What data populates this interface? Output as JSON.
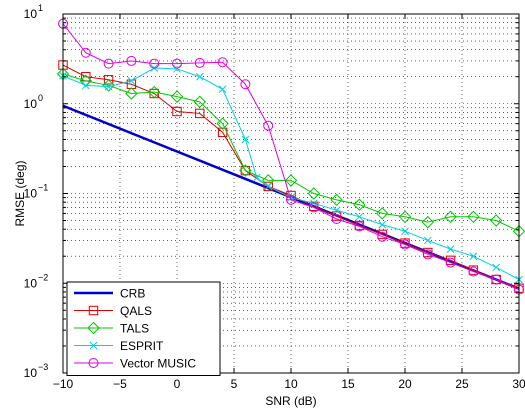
{
  "chart_data": {
    "type": "line",
    "title": "",
    "xlabel": "SNR (dB)",
    "ylabel": "RMSE (deg)",
    "xscale": "linear",
    "yscale": "log",
    "xlim": [
      -10,
      30
    ],
    "ylim": [
      0.001,
      10
    ],
    "grid": true,
    "grid_style": "dotted",
    "legend_position": "bottom-left",
    "x_ticks": [
      -10,
      -5,
      0,
      5,
      10,
      15,
      20,
      25,
      30
    ],
    "x_tick_labels": [
      "−10",
      "−5",
      "0",
      "5",
      "10",
      "15",
      "20",
      "25",
      "30"
    ],
    "y_ticks": [
      {
        "value": 0.001,
        "base": "10",
        "exp": "−3"
      },
      {
        "value": 0.01,
        "base": "10",
        "exp": "−2"
      },
      {
        "value": 0.1,
        "base": "10",
        "exp": "−1"
      },
      {
        "value": 1,
        "base": "10",
        "exp": "0"
      },
      {
        "value": 10,
        "base": "10",
        "exp": "1"
      }
    ],
    "series": [
      {
        "name": "CRB",
        "color": "#0000c8",
        "marker": "none",
        "line_width": 2.5,
        "x": [
          -10,
          30
        ],
        "y": [
          0.95,
          0.0087
        ]
      },
      {
        "name": "QALS",
        "color": "#e00000",
        "marker": "square",
        "line_width": 1,
        "x": [
          -10,
          -8,
          -6,
          -4,
          -2,
          0,
          2,
          4,
          6,
          8,
          10,
          12,
          14,
          16,
          18,
          20,
          22,
          24,
          26,
          28,
          30
        ],
        "y": [
          2.7,
          2.0,
          1.85,
          1.65,
          1.3,
          0.82,
          0.78,
          0.48,
          0.18,
          0.12,
          0.095,
          0.072,
          0.056,
          0.044,
          0.035,
          0.028,
          0.022,
          0.018,
          0.014,
          0.011,
          0.0088
        ]
      },
      {
        "name": "TALS",
        "color": "#00c800",
        "marker": "diamond",
        "line_width": 1,
        "x": [
          -10,
          -8,
          -6,
          -4,
          -2,
          0,
          2,
          4,
          6,
          8,
          10,
          12,
          14,
          16,
          18,
          20,
          22,
          24,
          26,
          28,
          30
        ],
        "y": [
          2.15,
          1.8,
          1.6,
          1.3,
          1.35,
          1.2,
          1.05,
          0.6,
          0.18,
          0.14,
          0.14,
          0.1,
          0.085,
          0.075,
          0.06,
          0.055,
          0.048,
          0.055,
          0.055,
          0.05,
          0.038
        ]
      },
      {
        "name": "ESPRIT",
        "color": "#00d0e0",
        "marker": "x",
        "line_width": 1,
        "x": [
          -10,
          -8,
          -6,
          -4,
          -2,
          0,
          2,
          4,
          6,
          7,
          8,
          10,
          12,
          14,
          16,
          18,
          20,
          22,
          24,
          26,
          28,
          30
        ],
        "y": [
          2.05,
          1.6,
          1.55,
          1.8,
          2.5,
          2.45,
          2.0,
          1.45,
          0.4,
          0.15,
          0.12,
          0.09,
          0.078,
          0.065,
          0.055,
          0.045,
          0.038,
          0.03,
          0.024,
          0.02,
          0.015,
          0.011
        ]
      },
      {
        "name": "Vector MUSIC",
        "color": "#e000e0",
        "marker": "circle",
        "line_width": 1,
        "x": [
          -10,
          -8,
          -6,
          -4,
          -2,
          0,
          2,
          4,
          6,
          8,
          10,
          12,
          14,
          16,
          18,
          20,
          22,
          24,
          26,
          28,
          30
        ],
        "y": [
          7.8,
          3.7,
          2.8,
          3.0,
          2.8,
          2.8,
          2.85,
          2.9,
          1.65,
          0.57,
          0.085,
          0.07,
          0.052,
          0.043,
          0.033,
          0.027,
          0.021,
          0.017,
          0.0135,
          0.011,
          0.0085
        ]
      }
    ]
  }
}
